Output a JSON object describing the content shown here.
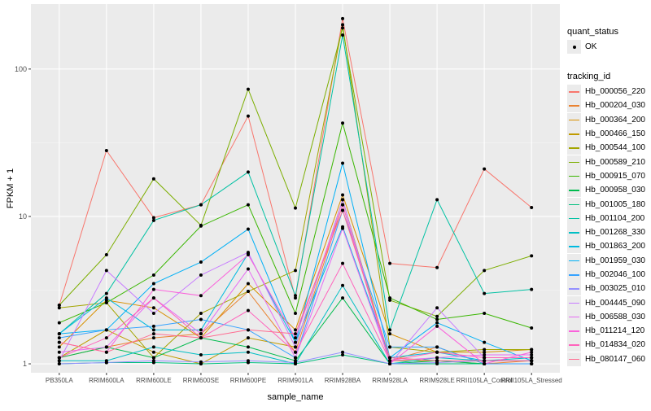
{
  "chart_data": {
    "type": "line",
    "xlabel": "sample_name",
    "ylabel": "FPKM + 1",
    "yscale": "log10",
    "ylim": [
      0.87,
      276
    ],
    "yticks": [
      {
        "value": 1,
        "label": "1"
      },
      {
        "value": 10,
        "label": "10"
      },
      {
        "value": 100,
        "label": "100"
      }
    ],
    "categories": [
      "PB350LA",
      "RRIM600LA",
      "RRIM600LE",
      "RRIM600SE",
      "RRIM600PE",
      "RRIM901LA",
      "RRIM928BA",
      "RRIM928LA",
      "RRIM928LE",
      "RRII105LA_Control",
      "RRII105LA_Stressed"
    ],
    "legend_placement": "right",
    "shape_legend": {
      "title": "quant_status",
      "items": [
        "OK"
      ]
    },
    "color_legend_title": "tracking_id",
    "series": [
      {
        "name": "Hb_000056_220",
        "color": "#F8766D",
        "values": [
          2.5,
          28,
          9.8,
          12,
          48,
          2.8,
          220,
          4.8,
          4.5,
          21,
          11.5
        ]
      },
      {
        "name": "Hb_000204_030",
        "color": "#EA8331",
        "values": [
          1.1,
          1.3,
          1.5,
          1.6,
          3.1,
          1.2,
          12,
          1.05,
          1.3,
          1.0,
          1.05
        ]
      },
      {
        "name": "Hb_000364_200",
        "color": "#D89000",
        "values": [
          1.3,
          2.7,
          2.4,
          1.5,
          3.5,
          1.7,
          14,
          1.6,
          1.2,
          1.2,
          1.25
        ]
      },
      {
        "name": "Hb_000466_150",
        "color": "#C09B00",
        "values": [
          1.1,
          1.7,
          1.2,
          1.0,
          1.5,
          1.3,
          13,
          1.05,
          1.05,
          1.0,
          1.0
        ]
      },
      {
        "name": "Hb_000544_100",
        "color": "#A3A500",
        "values": [
          2.4,
          2.6,
          1.1,
          2.2,
          3.1,
          4.3,
          200,
          1.3,
          1.2,
          1.25,
          1.25
        ]
      },
      {
        "name": "Hb_000589_210",
        "color": "#7CAE00",
        "values": [
          2.5,
          5.5,
          18,
          8.7,
          73,
          11.4,
          190,
          2.7,
          2.1,
          4.3,
          5.4
        ]
      },
      {
        "name": "Hb_000915_070",
        "color": "#39B600",
        "values": [
          1.9,
          2.6,
          4.0,
          8.6,
          12,
          2.2,
          43,
          2.8,
          2.0,
          2.2,
          1.75
        ]
      },
      {
        "name": "Hb_000958_030",
        "color": "#00BB4E",
        "values": [
          1.1,
          1.3,
          1.1,
          1.5,
          1.3,
          1.05,
          2.8,
          1.0,
          1.05,
          1.0,
          1.0
        ]
      },
      {
        "name": "Hb_001005_180",
        "color": "#00BF7D",
        "values": [
          1.0,
          1.02,
          1.02,
          1.0,
          1.02,
          1.0,
          1.15,
          1.0,
          1.0,
          1.0,
          1.0
        ]
      },
      {
        "name": "Hb_001104_200",
        "color": "#00C1A3",
        "values": [
          1.6,
          3.0,
          9.4,
          12,
          20,
          2.9,
          170,
          1.7,
          13,
          3.0,
          3.2
        ]
      },
      {
        "name": "Hb_001268_330",
        "color": "#00BFC4",
        "values": [
          1.05,
          1.05,
          1.3,
          1.15,
          1.2,
          1.0,
          3.4,
          1.0,
          1.1,
          1.05,
          1.1
        ]
      },
      {
        "name": "Hb_001863_200",
        "color": "#00BAE0",
        "values": [
          1.6,
          2.8,
          1.7,
          1.7,
          5.6,
          1.4,
          8.5,
          1.1,
          1.2,
          1.05,
          1.05
        ]
      },
      {
        "name": "Hb_001959_030",
        "color": "#00B0F6",
        "values": [
          1.6,
          1.7,
          3.5,
          4.9,
          8.2,
          1.4,
          23,
          1.1,
          1.9,
          1.4,
          1.05
        ]
      },
      {
        "name": "Hb_002046_100",
        "color": "#35A2FF",
        "values": [
          1.5,
          1.7,
          1.8,
          2.0,
          1.7,
          1.1,
          11,
          1.3,
          1.3,
          1.0,
          1.0
        ]
      },
      {
        "name": "Hb_003025_010",
        "color": "#9590FF",
        "values": [
          1.0,
          1.02,
          1.05,
          1.03,
          1.05,
          1.02,
          1.2,
          1.0,
          1.02,
          1.05,
          1.05
        ]
      },
      {
        "name": "Hb_004445_090",
        "color": "#C77CFF",
        "values": [
          1.05,
          4.3,
          2.2,
          4.0,
          5.7,
          1.3,
          13,
          1.0,
          2.4,
          1.1,
          1.1
        ]
      },
      {
        "name": "Hb_006588_030",
        "color": "#E76BF3",
        "values": [
          1.2,
          1.3,
          2.8,
          1.6,
          4.4,
          1.1,
          8.3,
          1.05,
          1.1,
          1.15,
          1.15
        ]
      },
      {
        "name": "Hb_011214_120",
        "color": "#FA62DB",
        "values": [
          1.4,
          1.2,
          3.2,
          2.9,
          5.5,
          1.5,
          12,
          1.0,
          1.8,
          1.0,
          1.2
        ]
      },
      {
        "name": "Hb_014834_020",
        "color": "#FF62BC",
        "values": [
          1.1,
          1.5,
          2.8,
          1.5,
          2.3,
          1.2,
          4.8,
          1.05,
          1.2,
          1.1,
          1.1
        ]
      },
      {
        "name": "Hb_080147_060",
        "color": "#FF6C91",
        "values": [
          1.4,
          1.2,
          1.6,
          1.5,
          1.7,
          1.6,
          11,
          1.1,
          1.05,
          1.05,
          1.05
        ]
      }
    ]
  }
}
